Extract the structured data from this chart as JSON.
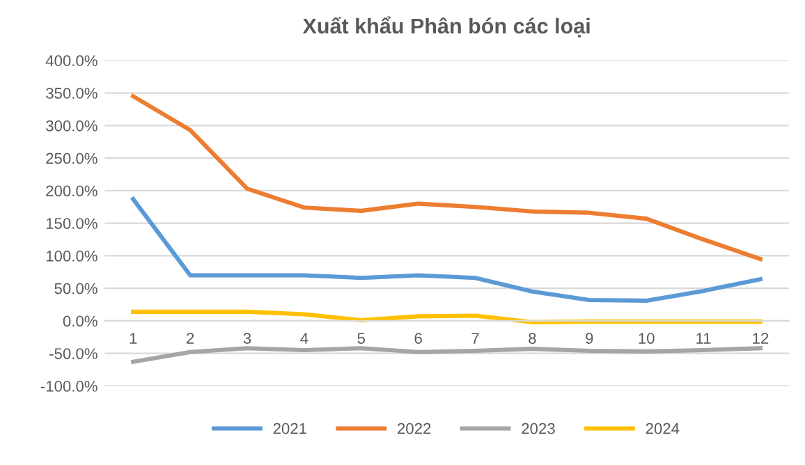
{
  "chart_data": {
    "type": "line",
    "title": "Xuất khẩu Phân bón các loại",
    "categories": [
      "1",
      "2",
      "3",
      "4",
      "5",
      "6",
      "7",
      "8",
      "9",
      "10",
      "11",
      "12"
    ],
    "series": [
      {
        "name": "2021",
        "color": "#5b9bd5",
        "values": [
          187,
          70,
          70,
          70,
          66,
          70,
          66,
          45,
          32,
          31,
          46,
          64
        ]
      },
      {
        "name": "2022",
        "color": "#ed7d31",
        "values": [
          345,
          293,
          203,
          174,
          169,
          180,
          175,
          168,
          166,
          157,
          125,
          95
        ]
      },
      {
        "name": "2023",
        "color": "#a5a5a5",
        "values": [
          -63,
          -48,
          -42,
          -45,
          -42,
          -48,
          -46,
          -43,
          -46,
          -47,
          -45,
          -42
        ]
      },
      {
        "name": "2024",
        "color": "#ffc000",
        "values": [
          14,
          14,
          14,
          10,
          1,
          7,
          8,
          -2,
          -1,
          -1,
          -1,
          -1
        ]
      }
    ],
    "ylim": [
      -100,
      400
    ],
    "yticks": [
      {
        "value": -100,
        "label": "-100.0%"
      },
      {
        "value": -50,
        "label": "-50.0%"
      },
      {
        "value": 0,
        "label": "0.0%"
      },
      {
        "value": 50,
        "label": "50.0%"
      },
      {
        "value": 100,
        "label": "100.0%"
      },
      {
        "value": 150,
        "label": "150.0%"
      },
      {
        "value": 200,
        "label": "200.0%"
      },
      {
        "value": 250,
        "label": "250.0%"
      },
      {
        "value": 300,
        "label": "300.0%"
      },
      {
        "value": 350,
        "label": "350.0%"
      },
      {
        "value": 400,
        "label": "400.0%"
      }
    ],
    "grid": "y",
    "legend": "bottom",
    "marker": "none",
    "line_style": "solid"
  }
}
